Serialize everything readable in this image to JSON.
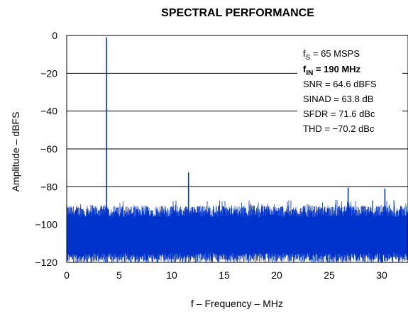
{
  "chart_data": {
    "type": "line",
    "title": "SPECTRAL PERFORMANCE",
    "xlabel": "f – Frequency – MHz",
    "ylabel": "Amplitude – dBFS",
    "xlim": [
      0,
      32.5
    ],
    "ylim": [
      -120,
      0
    ],
    "x_ticks": [
      "0",
      "5",
      "10",
      "15",
      "20",
      "25",
      "30"
    ],
    "y_ticks": [
      "0",
      "−20",
      "−40",
      "−60",
      "−80",
      "−100",
      "−120"
    ],
    "grid": "horizontal",
    "line_color": "#0033cc",
    "noise_floor": {
      "typical_min_dbfs": -115,
      "typical_max_dbfs": -93,
      "occasional_peak_dbfs": -87
    },
    "series": [
      {
        "x": [
          3.8,
          11.6,
          26.8,
          30.3
        ],
        "y": [
          -1,
          -72.5,
          -80.5,
          -81
        ]
      }
    ],
    "annotations": {
      "fs": {
        "prefix": "f",
        "sub": "S",
        "rest": " = 65 MSPS"
      },
      "fin": {
        "prefix": "f",
        "sub": "IN",
        "rest": " = 190 MHz"
      },
      "snr": "SNR = 64.6 dBFS",
      "sinad": "SINAD = 63.8 dB",
      "sfdr": "SFDR = 71.6 dBc",
      "thd": "THD = −70.2 dBc"
    }
  }
}
